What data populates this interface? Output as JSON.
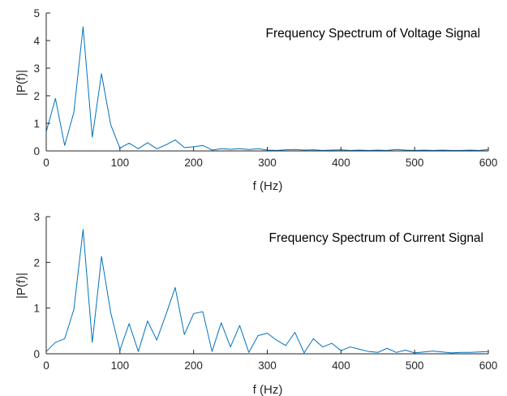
{
  "colors": {
    "series": "#0072BD",
    "axis": "#262626",
    "background": "#ffffff"
  },
  "chart_data": [
    {
      "type": "line",
      "title": "Frequency Spectrum of Voltage Signal",
      "xlabel": "f (Hz)",
      "ylabel": "|P(f)|",
      "xlim": [
        0,
        600
      ],
      "ylim": [
        0,
        5
      ],
      "xticks": [
        0,
        100,
        200,
        300,
        400,
        500,
        600
      ],
      "yticks": [
        0,
        1,
        2,
        3,
        4,
        5
      ],
      "grid": false,
      "series": [
        {
          "x": [
            0,
            12.5,
            25,
            37.5,
            50,
            62.5,
            75,
            87.5,
            100,
            112.5,
            125,
            137.5,
            150,
            162.5,
            175,
            187.5,
            200,
            212.5,
            225,
            237.5,
            250,
            262.5,
            275,
            287.5,
            300,
            312.5,
            325,
            337.5,
            350,
            362.5,
            375,
            387.5,
            400,
            412.5,
            425,
            437.5,
            450,
            462.5,
            475,
            487.5,
            500,
            512.5,
            525,
            537.5,
            550,
            562.5,
            575,
            587.5,
            600
          ],
          "y": [
            0.7,
            1.9,
            0.2,
            1.4,
            4.5,
            0.5,
            2.8,
            0.95,
            0.1,
            0.28,
            0.08,
            0.3,
            0.08,
            0.22,
            0.4,
            0.12,
            0.15,
            0.2,
            0.03,
            0.08,
            0.06,
            0.08,
            0.05,
            0.08,
            0.03,
            0.02,
            0.04,
            0.05,
            0.03,
            0.04,
            0.02,
            0.03,
            0.04,
            0.02,
            0.03,
            0.02,
            0.03,
            0.02,
            0.05,
            0.03,
            0.02,
            0.03,
            0.02,
            0.03,
            0.02,
            0.02,
            0.03,
            0.02,
            0.05
          ]
        }
      ]
    },
    {
      "type": "line",
      "title": "Frequency Spectrum of Current Signal",
      "xlabel": "f (Hz)",
      "ylabel": "|P(f)|",
      "xlim": [
        0,
        600
      ],
      "ylim": [
        0,
        3
      ],
      "xticks": [
        0,
        100,
        200,
        300,
        400,
        500,
        600
      ],
      "yticks": [
        0,
        1,
        2,
        3
      ],
      "grid": false,
      "series": [
        {
          "x": [
            0,
            12.5,
            25,
            37.5,
            50,
            62.5,
            75,
            87.5,
            100,
            112.5,
            125,
            137.5,
            150,
            162.5,
            175,
            187.5,
            200,
            212.5,
            225,
            237.5,
            250,
            262.5,
            275,
            287.5,
            300,
            312.5,
            325,
            337.5,
            350,
            362.5,
            375,
            387.5,
            400,
            412.5,
            425,
            437.5,
            450,
            462.5,
            475,
            487.5,
            500,
            512.5,
            525,
            537.5,
            550,
            562.5,
            575,
            587.5,
            600
          ],
          "y": [
            0.05,
            0.25,
            0.33,
            0.97,
            2.72,
            0.25,
            2.13,
            0.9,
            0.08,
            0.66,
            0.05,
            0.72,
            0.3,
            0.86,
            1.45,
            0.42,
            0.88,
            0.92,
            0.05,
            0.68,
            0.15,
            0.62,
            0.03,
            0.4,
            0.45,
            0.3,
            0.18,
            0.47,
            0.02,
            0.33,
            0.15,
            0.23,
            0.07,
            0.15,
            0.1,
            0.05,
            0.03,
            0.12,
            0.03,
            0.08,
            0.02,
            0.04,
            0.06,
            0.04,
            0.02,
            0.03,
            0.03,
            0.04,
            0.05
          ]
        }
      ]
    }
  ]
}
